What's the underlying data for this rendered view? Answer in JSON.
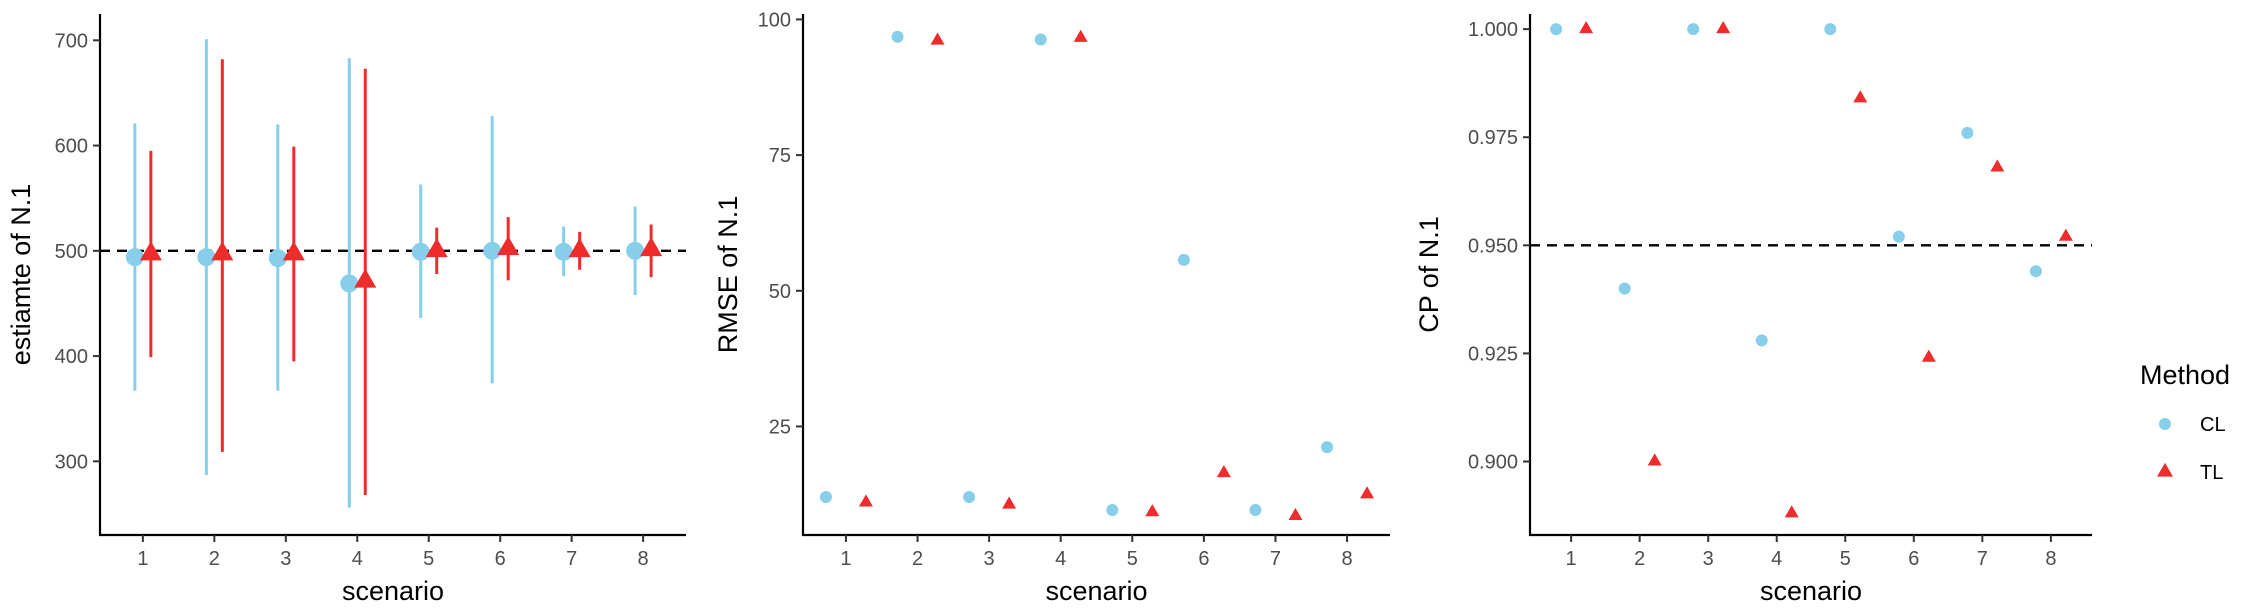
{
  "legend": {
    "title": "Method",
    "items": [
      {
        "label": "CL",
        "color": "#87CEEB",
        "shape": "circle"
      },
      {
        "label": "TL",
        "color": "#EE2C2C",
        "shape": "triangle"
      }
    ]
  },
  "chart_data": [
    {
      "type": "scatter",
      "subtype": "pointrange",
      "xlabel": "scenario",
      "ylabel": "estiamte of N.1",
      "categories": [
        "1",
        "2",
        "3",
        "4",
        "5",
        "6",
        "7",
        "8"
      ],
      "ylim": [
        230,
        725
      ],
      "yticks": [
        300,
        400,
        500,
        600,
        700
      ],
      "reference_line": 500,
      "series": [
        {
          "name": "CL",
          "color": "#87CEEB",
          "shape": "circle",
          "values": [
            494,
            494,
            493,
            469,
            499,
            500,
            499,
            500
          ],
          "lower": [
            367,
            287,
            367,
            256,
            436,
            374,
            476,
            458
          ],
          "upper": [
            621,
            701,
            620,
            683,
            563,
            628,
            523,
            542
          ]
        },
        {
          "name": "TL",
          "color": "#EE2C2C",
          "shape": "triangle",
          "values": [
            497,
            497,
            497,
            471,
            500,
            502,
            500,
            501
          ],
          "lower": [
            399,
            309,
            395,
            268,
            478,
            472,
            482,
            475
          ],
          "upper": [
            595,
            682,
            599,
            673,
            522,
            532,
            518,
            525
          ]
        }
      ]
    },
    {
      "type": "scatter",
      "xlabel": "scenario",
      "ylabel": "RMSE of N.1",
      "categories": [
        "1",
        "2",
        "3",
        "4",
        "5",
        "6",
        "7",
        "8"
      ],
      "ylim": [
        5,
        101
      ],
      "yticks": [
        25,
        50,
        75,
        100
      ],
      "series": [
        {
          "name": "CL",
          "color": "#87CEEB",
          "shape": "circle",
          "values": [
            12.0,
            96.8,
            12.0,
            96.3,
            9.6,
            55.7,
            9.6,
            21.2
          ]
        },
        {
          "name": "TL",
          "color": "#EE2C2C",
          "shape": "triangle",
          "values": [
            11.0,
            96.1,
            10.6,
            96.6,
            9.2,
            16.4,
            8.5,
            12.5
          ]
        }
      ]
    },
    {
      "type": "scatter",
      "xlabel": "scenario",
      "ylabel": "CP of N.1",
      "categories": [
        "1",
        "2",
        "3",
        "4",
        "5",
        "6",
        "7",
        "8"
      ],
      "ylim": [
        0.883,
        1.0035
      ],
      "yticks": [
        0.9,
        0.925,
        0.95,
        0.975,
        1.0
      ],
      "reference_line": 0.95,
      "series": [
        {
          "name": "CL",
          "color": "#87CEEB",
          "shape": "circle",
          "values": [
            1.0,
            0.94,
            1.0,
            0.928,
            1.0,
            0.952,
            0.976,
            0.944
          ]
        },
        {
          "name": "TL",
          "color": "#EE2C2C",
          "shape": "triangle",
          "values": [
            1.0,
            0.9,
            1.0,
            0.888,
            0.984,
            0.924,
            0.968,
            0.952
          ]
        }
      ]
    }
  ]
}
